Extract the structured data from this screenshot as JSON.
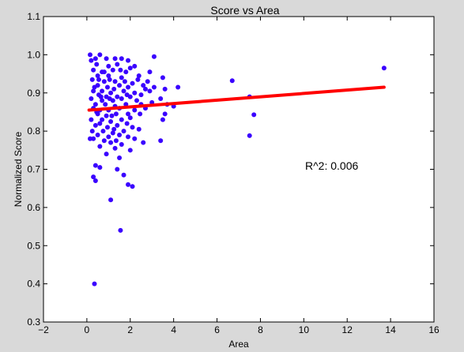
{
  "chart_data": {
    "type": "scatter",
    "title": "Score vs Area",
    "xlabel": "Area",
    "ylabel": "Normalized Score",
    "xlim": [
      -2,
      16
    ],
    "ylim": [
      0.3,
      1.1
    ],
    "xticks": [
      "−2",
      "0",
      "2",
      "4",
      "6",
      "8",
      "10",
      "12",
      "14",
      "16"
    ],
    "yticks": [
      "0.3",
      "0.4",
      "0.5",
      "0.6",
      "0.7",
      "0.8",
      "0.9",
      "1.0",
      "1.1"
    ],
    "grid": false,
    "annotation": "R^2: 0.006",
    "colors": {
      "points": "#3a00ff",
      "fit": "#ff0000",
      "background": "#d9d9d9",
      "plot": "#ffffff"
    },
    "fit_line": {
      "x": [
        0.1,
        13.7
      ],
      "y": [
        0.855,
        0.915
      ]
    },
    "points": [
      {
        "x": 0.15,
        "y": 1.0
      },
      {
        "x": 0.6,
        "y": 1.0
      },
      {
        "x": 0.2,
        "y": 0.985
      },
      {
        "x": 0.9,
        "y": 0.99
      },
      {
        "x": 1.3,
        "y": 0.99
      },
      {
        "x": 1.6,
        "y": 0.99
      },
      {
        "x": 1.9,
        "y": 0.985
      },
      {
        "x": 3.1,
        "y": 0.995
      },
      {
        "x": 0.45,
        "y": 0.975
      },
      {
        "x": 1.0,
        "y": 0.97
      },
      {
        "x": 1.4,
        "y": 0.975
      },
      {
        "x": 2.2,
        "y": 0.97
      },
      {
        "x": 0.3,
        "y": 0.96
      },
      {
        "x": 0.7,
        "y": 0.955
      },
      {
        "x": 1.2,
        "y": 0.96
      },
      {
        "x": 1.8,
        "y": 0.955
      },
      {
        "x": 0.5,
        "y": 0.945
      },
      {
        "x": 1.0,
        "y": 0.945
      },
      {
        "x": 1.6,
        "y": 0.94
      },
      {
        "x": 2.4,
        "y": 0.945
      },
      {
        "x": 3.5,
        "y": 0.94
      },
      {
        "x": 0.25,
        "y": 0.935
      },
      {
        "x": 0.8,
        "y": 0.93
      },
      {
        "x": 1.3,
        "y": 0.93
      },
      {
        "x": 2.1,
        "y": 0.925
      },
      {
        "x": 2.8,
        "y": 0.93
      },
      {
        "x": 6.7,
        "y": 0.932
      },
      {
        "x": 13.7,
        "y": 0.965
      },
      {
        "x": 0.5,
        "y": 0.92
      },
      {
        "x": 0.95,
        "y": 0.915
      },
      {
        "x": 1.5,
        "y": 0.92
      },
      {
        "x": 1.9,
        "y": 0.915
      },
      {
        "x": 2.6,
        "y": 0.92
      },
      {
        "x": 3.1,
        "y": 0.915
      },
      {
        "x": 3.6,
        "y": 0.91
      },
      {
        "x": 4.2,
        "y": 0.915
      },
      {
        "x": 0.3,
        "y": 0.905
      },
      {
        "x": 0.7,
        "y": 0.905
      },
      {
        "x": 1.1,
        "y": 0.9
      },
      {
        "x": 1.7,
        "y": 0.905
      },
      {
        "x": 2.2,
        "y": 0.9
      },
      {
        "x": 2.9,
        "y": 0.905
      },
      {
        "x": 0.55,
        "y": 0.895
      },
      {
        "x": 0.9,
        "y": 0.89
      },
      {
        "x": 1.4,
        "y": 0.89
      },
      {
        "x": 2.0,
        "y": 0.89
      },
      {
        "x": 2.5,
        "y": 0.895
      },
      {
        "x": 0.2,
        "y": 0.885
      },
      {
        "x": 0.7,
        "y": 0.88
      },
      {
        "x": 1.2,
        "y": 0.88
      },
      {
        "x": 1.6,
        "y": 0.885
      },
      {
        "x": 2.3,
        "y": 0.88
      },
      {
        "x": 3.4,
        "y": 0.885
      },
      {
        "x": 7.5,
        "y": 0.89
      },
      {
        "x": 0.4,
        "y": 0.87
      },
      {
        "x": 0.85,
        "y": 0.87
      },
      {
        "x": 1.3,
        "y": 0.865
      },
      {
        "x": 1.8,
        "y": 0.87
      },
      {
        "x": 2.5,
        "y": 0.87
      },
      {
        "x": 3.0,
        "y": 0.875
      },
      {
        "x": 3.7,
        "y": 0.87
      },
      {
        "x": 4.0,
        "y": 0.865
      },
      {
        "x": 0.3,
        "y": 0.86
      },
      {
        "x": 0.6,
        "y": 0.855
      },
      {
        "x": 1.0,
        "y": 0.855
      },
      {
        "x": 1.5,
        "y": 0.86
      },
      {
        "x": 2.2,
        "y": 0.855
      },
      {
        "x": 2.7,
        "y": 0.86
      },
      {
        "x": 0.5,
        "y": 0.845
      },
      {
        "x": 0.9,
        "y": 0.84
      },
      {
        "x": 1.35,
        "y": 0.845
      },
      {
        "x": 1.9,
        "y": 0.845
      },
      {
        "x": 3.6,
        "y": 0.845
      },
      {
        "x": 7.7,
        "y": 0.843
      },
      {
        "x": 0.2,
        "y": 0.83
      },
      {
        "x": 0.7,
        "y": 0.83
      },
      {
        "x": 1.1,
        "y": 0.825
      },
      {
        "x": 1.6,
        "y": 0.83
      },
      {
        "x": 2.0,
        "y": 0.835
      },
      {
        "x": 3.5,
        "y": 0.83
      },
      {
        "x": 0.4,
        "y": 0.815
      },
      {
        "x": 0.95,
        "y": 0.81
      },
      {
        "x": 1.4,
        "y": 0.815
      },
      {
        "x": 2.1,
        "y": 0.81
      },
      {
        "x": 0.25,
        "y": 0.8
      },
      {
        "x": 0.75,
        "y": 0.8
      },
      {
        "x": 1.2,
        "y": 0.795
      },
      {
        "x": 1.7,
        "y": 0.8
      },
      {
        "x": 2.4,
        "y": 0.805
      },
      {
        "x": 0.5,
        "y": 0.79
      },
      {
        "x": 1.0,
        "y": 0.785
      },
      {
        "x": 1.5,
        "y": 0.79
      },
      {
        "x": 1.9,
        "y": 0.785
      },
      {
        "x": 0.3,
        "y": 0.78
      },
      {
        "x": 0.8,
        "y": 0.775
      },
      {
        "x": 3.4,
        "y": 0.775
      },
      {
        "x": 7.5,
        "y": 0.788
      },
      {
        "x": 1.1,
        "y": 0.77
      },
      {
        "x": 1.6,
        "y": 0.765
      },
      {
        "x": 2.6,
        "y": 0.77
      },
      {
        "x": 0.6,
        "y": 0.76
      },
      {
        "x": 1.3,
        "y": 0.755
      },
      {
        "x": 2.0,
        "y": 0.75
      },
      {
        "x": 0.9,
        "y": 0.74
      },
      {
        "x": 1.5,
        "y": 0.73
      },
      {
        "x": 0.4,
        "y": 0.71
      },
      {
        "x": 1.4,
        "y": 0.7
      },
      {
        "x": 0.6,
        "y": 0.705
      },
      {
        "x": 1.7,
        "y": 0.685
      },
      {
        "x": 0.3,
        "y": 0.68
      },
      {
        "x": 0.4,
        "y": 0.67
      },
      {
        "x": 1.9,
        "y": 0.66
      },
      {
        "x": 2.1,
        "y": 0.655
      },
      {
        "x": 1.1,
        "y": 0.62
      },
      {
        "x": 1.55,
        "y": 0.54
      },
      {
        "x": 0.35,
        "y": 0.4
      },
      {
        "x": 0.55,
        "y": 0.935
      },
      {
        "x": 1.05,
        "y": 0.935
      },
      {
        "x": 1.75,
        "y": 0.93
      },
      {
        "x": 2.35,
        "y": 0.935
      },
      {
        "x": 0.35,
        "y": 0.915
      },
      {
        "x": 1.25,
        "y": 0.91
      },
      {
        "x": 2.7,
        "y": 0.91
      },
      {
        "x": 0.65,
        "y": 0.89
      },
      {
        "x": 1.05,
        "y": 0.885
      },
      {
        "x": 1.85,
        "y": 0.895
      },
      {
        "x": 0.45,
        "y": 0.85
      },
      {
        "x": 1.15,
        "y": 0.84
      },
      {
        "x": 2.45,
        "y": 0.845
      },
      {
        "x": 0.6,
        "y": 0.82
      },
      {
        "x": 1.25,
        "y": 0.805
      },
      {
        "x": 1.85,
        "y": 0.82
      },
      {
        "x": 0.15,
        "y": 0.78
      },
      {
        "x": 1.35,
        "y": 0.775
      },
      {
        "x": 2.2,
        "y": 0.78
      },
      {
        "x": 0.8,
        "y": 0.955
      },
      {
        "x": 1.55,
        "y": 0.96
      },
      {
        "x": 2.0,
        "y": 0.965
      },
      {
        "x": 0.4,
        "y": 0.99
      },
      {
        "x": 2.9,
        "y": 0.955
      }
    ]
  }
}
